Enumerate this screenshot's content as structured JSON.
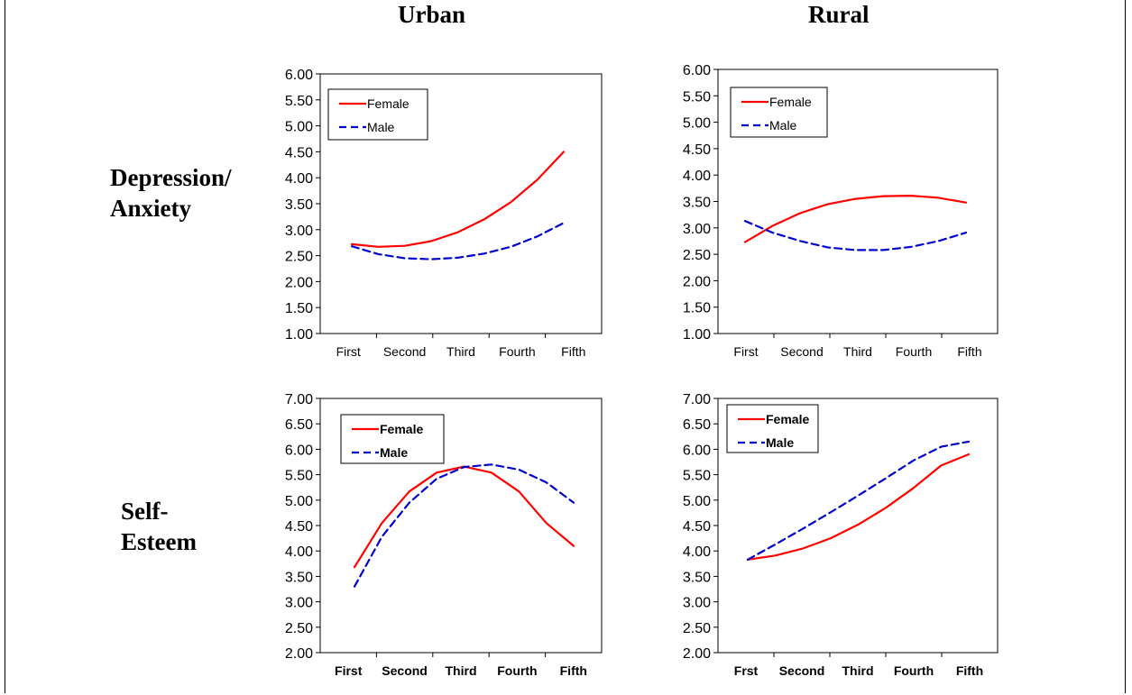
{
  "column_titles": [
    "Urban",
    "Rural"
  ],
  "row_titles": [
    [
      "Depression/",
      "Anxiety"
    ],
    [
      "Self-",
      "Esteem"
    ]
  ],
  "colors": {
    "female": "#ff0000",
    "male": "#0000cc"
  },
  "chart_data": [
    {
      "type": "line",
      "x_labels": [
        "First",
        "Second",
        "Third",
        "Fourth",
        "Fifth"
      ],
      "tick_bold": false,
      "ylim": [
        1.0,
        6.0
      ],
      "yticks": [
        "1.00",
        "1.50",
        "2.00",
        "2.50",
        "3.00",
        "3.50",
        "4.00",
        "4.50",
        "5.00",
        "5.50",
        "6.00"
      ],
      "legend": {
        "position": "top-left",
        "bold": false
      },
      "series": [
        {
          "name": "Female",
          "color": "#ff0000",
          "dash": false,
          "x": [
            1,
            1.5,
            2,
            2.5,
            3,
            3.5,
            4,
            4.5,
            5
          ],
          "values": [
            2.72,
            2.67,
            2.69,
            2.78,
            2.95,
            3.2,
            3.53,
            3.96,
            4.5
          ]
        },
        {
          "name": "Male",
          "color": "#0000cc",
          "dash": true,
          "x": [
            1,
            1.5,
            2,
            2.5,
            3,
            3.5,
            4,
            4.5,
            5
          ],
          "values": [
            2.68,
            2.53,
            2.45,
            2.43,
            2.46,
            2.54,
            2.67,
            2.87,
            3.13
          ]
        }
      ]
    },
    {
      "type": "line",
      "x_labels": [
        "First",
        "Second",
        "Third",
        "Fourth",
        "Fifth"
      ],
      "tick_bold": false,
      "ylim": [
        1.0,
        6.0
      ],
      "yticks": [
        "1.00",
        "1.50",
        "2.00",
        "2.50",
        "3.00",
        "3.50",
        "4.00",
        "4.50",
        "5.00",
        "5.50",
        "6.00"
      ],
      "legend": {
        "position": "top-left",
        "bold": false
      },
      "series": [
        {
          "name": "Female",
          "color": "#ff0000",
          "dash": false,
          "x": [
            1,
            1.5,
            2,
            2.5,
            3,
            3.5,
            4,
            4.5,
            5
          ],
          "values": [
            2.73,
            3.04,
            3.28,
            3.45,
            3.55,
            3.6,
            3.61,
            3.57,
            3.48
          ]
        },
        {
          "name": "Male",
          "color": "#0000cc",
          "dash": true,
          "x": [
            1,
            1.5,
            2,
            2.5,
            3,
            3.5,
            4,
            4.5,
            5
          ],
          "values": [
            3.13,
            2.91,
            2.75,
            2.63,
            2.58,
            2.58,
            2.64,
            2.75,
            2.91
          ]
        }
      ]
    },
    {
      "type": "line",
      "x_labels": [
        "First",
        "Second",
        "Third",
        "Fourth",
        "Fifth"
      ],
      "tick_bold": true,
      "ylim": [
        2.0,
        7.0
      ],
      "yticks": [
        "2.00",
        "2.50",
        "3.00",
        "3.50",
        "4.00",
        "4.50",
        "5.00",
        "5.50",
        "6.00",
        "6.50",
        "7.00"
      ],
      "legend": {
        "position": "top-left",
        "bold": true
      },
      "series": [
        {
          "name": "Female",
          "color": "#ff0000",
          "dash": false,
          "x": [
            1,
            1.5,
            2,
            2.5,
            3,
            3.5,
            4,
            4.5,
            5
          ],
          "values": [
            3.68,
            4.55,
            5.17,
            5.54,
            5.66,
            5.54,
            5.17,
            4.55,
            4.1
          ]
        },
        {
          "name": "Male",
          "color": "#0000cc",
          "dash": true,
          "x": [
            1,
            1.5,
            2,
            2.5,
            3,
            3.5,
            4,
            4.5,
            5
          ],
          "values": [
            3.3,
            4.28,
            4.95,
            5.42,
            5.65,
            5.7,
            5.6,
            5.35,
            4.95
          ]
        }
      ]
    },
    {
      "type": "line",
      "x_labels": [
        "Frst",
        "Second",
        "Third",
        "Fourth",
        "Fifth"
      ],
      "tick_bold": true,
      "ylim": [
        2.0,
        7.0
      ],
      "yticks": [
        "2.00",
        "2.50",
        "3.00",
        "3.50",
        "4.00",
        "4.50",
        "5.00",
        "5.50",
        "6.00",
        "6.50",
        "7.00"
      ],
      "legend": {
        "position": "top-left",
        "bold": true
      },
      "series": [
        {
          "name": "Female",
          "color": "#ff0000",
          "dash": false,
          "x": [
            1,
            1.5,
            2,
            2.5,
            3,
            3.5,
            4,
            4.5,
            5
          ],
          "values": [
            3.83,
            3.91,
            4.05,
            4.25,
            4.52,
            4.85,
            5.24,
            5.68,
            5.9
          ]
        },
        {
          "name": "Male",
          "color": "#0000cc",
          "dash": true,
          "x": [
            1,
            1.5,
            2,
            2.5,
            3,
            3.5,
            4,
            4.5,
            5
          ],
          "values": [
            3.83,
            4.13,
            4.44,
            4.76,
            5.09,
            5.43,
            5.78,
            6.05,
            6.15
          ]
        }
      ]
    }
  ]
}
